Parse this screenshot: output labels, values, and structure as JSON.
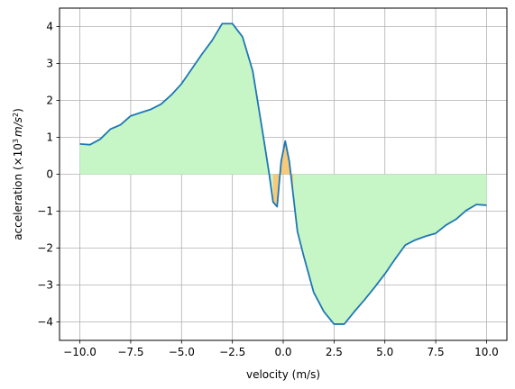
{
  "chart_data": {
    "type": "area",
    "xlabel": "velocity (m/s)",
    "ylabel_main": "acceleration (×10",
    "ylabel_sup": "3",
    "ylabel_unit": "m/s",
    "ylabel_unit_sup": "2",
    "ylabel_close": ")",
    "xlim": [
      -11,
      11
    ],
    "ylim": [
      -4.5,
      4.5
    ],
    "xticks": [
      -10,
      -7.5,
      -5,
      -2.5,
      0,
      2.5,
      5,
      7.5,
      10
    ],
    "xtick_labels": [
      "−10.0",
      "−7.5",
      "−5.0",
      "−2.5",
      "0.0",
      "2.5",
      "5.0",
      "7.5",
      "10.0"
    ],
    "yticks": [
      -4,
      -3,
      -2,
      -1,
      0,
      1,
      2,
      3,
      4
    ],
    "ytick_labels": [
      "−4",
      "−3",
      "−2",
      "−1",
      "0",
      "1",
      "2",
      "3",
      "4"
    ],
    "grid": true,
    "colors": {
      "line": "#1f77b4",
      "fill_positive_region": "#c6f5c6",
      "fill_inner_region": "#f7c97a",
      "grid": "#b0b0b0"
    },
    "series": [
      {
        "x": [
          -10,
          -9.5,
          -9,
          -8.5,
          -8,
          -7.5,
          -7,
          -6.5,
          -6,
          -5.5,
          -5,
          -4.5,
          -4,
          -3.5,
          -3,
          -2.5,
          -2,
          -1.5,
          -1.0,
          -0.7,
          -0.5,
          -0.3,
          -0.1,
          0.1,
          0.3,
          0.5,
          0.7,
          1.0,
          1.5,
          2.0,
          2.5,
          3.0,
          3.5,
          4.0,
          4.5,
          5.0,
          5.5,
          6.0,
          6.5,
          7.0,
          7.5,
          8.0,
          8.5,
          9.0,
          9.5,
          10
        ],
        "y": [
          0.82,
          0.8,
          0.95,
          1.22,
          1.34,
          1.58,
          1.67,
          1.76,
          1.9,
          2.15,
          2.45,
          2.85,
          3.25,
          3.62,
          4.08,
          4.08,
          3.72,
          2.8,
          1.1,
          0.05,
          -0.75,
          -0.88,
          0.35,
          0.9,
          0.35,
          -0.6,
          -1.55,
          -2.2,
          -3.2,
          -3.72,
          -4.06,
          -4.06,
          -3.72,
          -3.4,
          -3.06,
          -2.7,
          -2.3,
          -1.92,
          -1.78,
          -1.68,
          -1.6,
          -1.38,
          -1.22,
          -0.98,
          -0.82,
          -0.84
        ]
      }
    ]
  }
}
